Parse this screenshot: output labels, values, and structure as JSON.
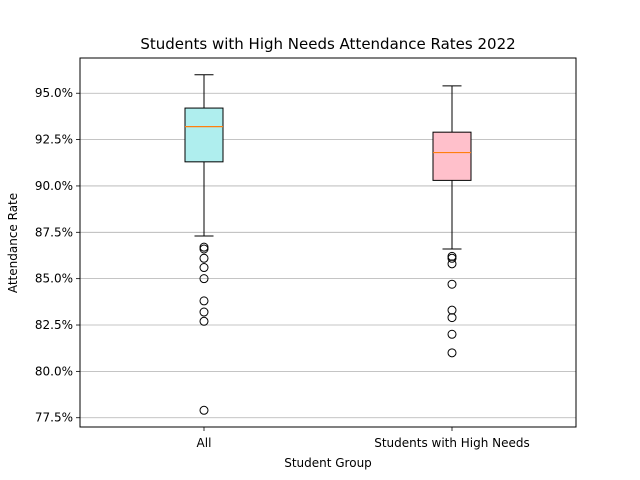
{
  "chart_data": {
    "type": "box",
    "title": "Students with High Needs Attendance Rates 2022",
    "xlabel": "Student Group",
    "ylabel": "Attendance Rate",
    "categories": [
      "All",
      "Students with High Needs"
    ],
    "ylim": [
      77.0,
      96.9
    ],
    "y_ticks": [
      77.5,
      80.0,
      82.5,
      85.0,
      87.5,
      90.0,
      92.5,
      95.0
    ],
    "y_tick_labels": [
      "77.5%",
      "80.0%",
      "82.5%",
      "85.0%",
      "87.5%",
      "90.0%",
      "92.5%",
      "95.0%"
    ],
    "grid": "horizontal",
    "boxes": [
      {
        "category": "All",
        "whisker_low": 87.3,
        "q1": 91.3,
        "median": 93.2,
        "q3": 94.2,
        "whisker_high": 96.0,
        "fill": "#afeeee",
        "outliers": [
          86.7,
          86.6,
          86.1,
          85.6,
          85.0,
          83.8,
          83.2,
          82.7,
          77.9
        ]
      },
      {
        "category": "Students with High Needs",
        "whisker_low": 86.6,
        "q1": 90.3,
        "median": 91.8,
        "q3": 92.9,
        "whisker_high": 95.4,
        "fill": "#ffc0cb",
        "outliers": [
          86.2,
          86.1,
          85.8,
          84.7,
          83.3,
          82.9,
          82.0,
          81.0
        ]
      }
    ],
    "colors": {
      "median": "#ff7f0e",
      "grid": "#b0b0b0",
      "edge": "#000000"
    }
  }
}
